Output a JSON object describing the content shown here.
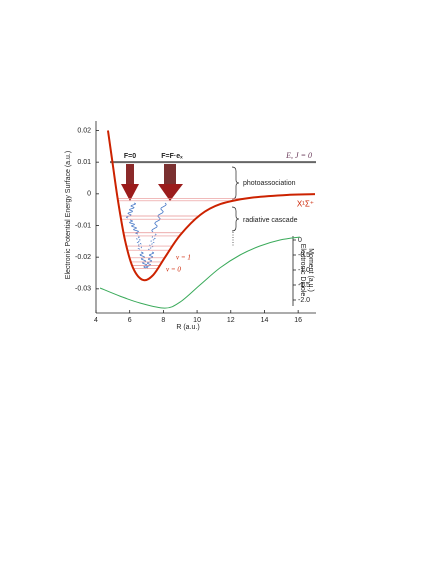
{
  "chart_data": {
    "type": "line",
    "x_label": "R (a.u.)",
    "y_label": "Electronic Potential Energy Surface (a.u.)",
    "y2_label": [
      "Electronic Dipole",
      "Moment (a.u.)"
    ],
    "x": [
      4.71,
      4.95,
      5.3,
      5.72,
      6.2,
      6.79,
      7.4,
      8.1,
      9.0,
      10.2,
      11.4,
      13.1,
      15.5,
      17.0
    ],
    "series": [
      {
        "name": "X¹Σ⁺",
        "color": "#cc2200",
        "values": [
          0.02,
          0.011,
          -0.002,
          -0.0146,
          -0.0234,
          -0.0272,
          -0.0256,
          -0.02,
          -0.013,
          -0.0066,
          -0.0032,
          -0.0013,
          -0.0003,
          -0.0001
        ]
      },
      {
        "color": "#3aaa5a",
        "axis": "y2",
        "x": [
          4.24,
          5.42,
          6.61,
          8.09,
          8.99,
          10.17,
          11.36,
          12.55,
          13.73,
          14.92,
          16.1
        ],
        "values": [
          -1.6,
          -1.87,
          -2.1,
          -2.27,
          -2.07,
          -1.5,
          -0.93,
          -0.5,
          -0.2,
          0,
          0.1
        ]
      }
    ],
    "levels": [
      -0.0015,
      -0.0022,
      -0.007,
      -0.008,
      -0.0123,
      -0.0133,
      -0.0165,
      -0.0178,
      -0.0202,
      -0.0215,
      -0.0226,
      -0.0236
    ],
    "level_color": "#e89090",
    "energy_line": {
      "label": "E, J = 0",
      "value": 0.01,
      "color": "#666666"
    },
    "annotations": {
      "arrow_left": "F=0",
      "arrow_right": "F=F·eₓ",
      "photo": "photoassociation",
      "cascade": "radiative cascade",
      "v1": "v = 1",
      "v0": "v = 0"
    },
    "xlim": [
      4,
      17
    ],
    "xticks": [
      4,
      6,
      8,
      10,
      12,
      14,
      16
    ],
    "ylim": [
      -0.037,
      0.023
    ],
    "yticks": [
      0.02,
      0.01,
      0,
      -0.01,
      -0.02,
      -0.03
    ],
    "y2lim": [
      -2.3,
      0.1
    ],
    "y2ticks": [
      0,
      -0.5,
      {
        "value": -1,
        "label": "-1.0"
      },
      -1.5,
      {
        "value": -2,
        "label": "-2.0"
      }
    ]
  }
}
